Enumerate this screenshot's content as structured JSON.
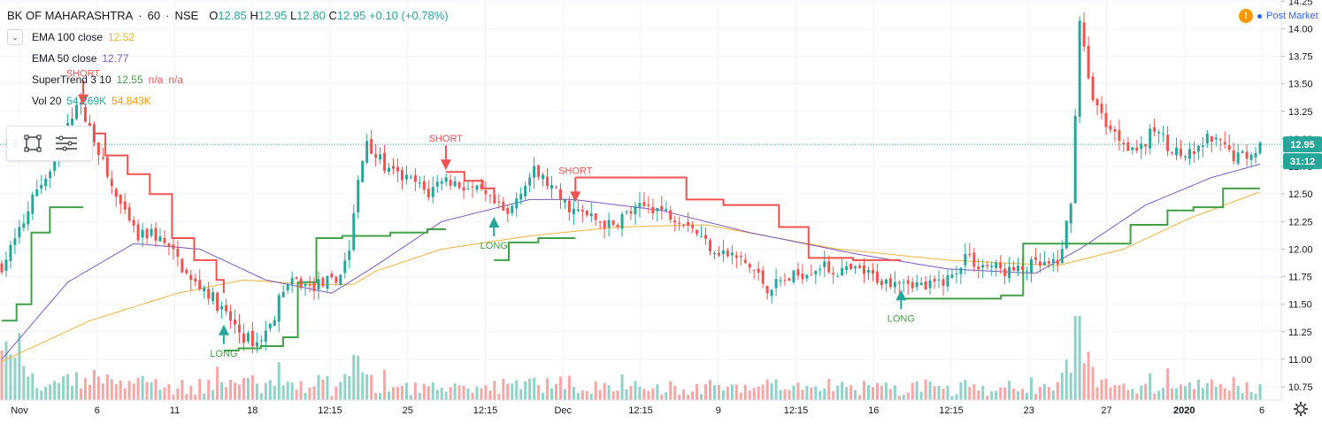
{
  "header": {
    "symbol": "BK OF MAHARASHTRA",
    "interval": "60",
    "exchange": "NSE",
    "open_label": "O",
    "open": "12.85",
    "high_label": "H",
    "high": "12.95",
    "low_label": "L",
    "low": "12.80",
    "close_label": "C",
    "close": "12.95",
    "change": "+0.10 (+0.78%)"
  },
  "post_market": {
    "badge": "!",
    "label": "Post Market"
  },
  "indicators": [
    {
      "label": "EMA 100 close",
      "value": "12.52",
      "color": "#f0b33a"
    },
    {
      "label": "EMA 50 close",
      "value": "12.77",
      "color": "#7e57c2"
    },
    {
      "label": "SuperTrend 3 10",
      "value": "12.55",
      "extra1": "n/a",
      "extra2": "n/a",
      "color": "#43a047",
      "color2": "#ef5350"
    },
    {
      "label": "Vol 20",
      "value": "54.269K",
      "value2": "54.843K",
      "color": "#26a69a",
      "color2": "#ff9800"
    }
  ],
  "colors": {
    "up": "#26a69a",
    "down": "#ef5350",
    "vol_up": "#8fd2c8",
    "vol_down": "#f4a7a5",
    "ema100": "#f0b33a",
    "ema50": "#7e57c2",
    "st_up": "#43a047",
    "st_down": "#ef5350",
    "price_badge": "#26a69a",
    "countdown_badge": "#26a69a",
    "grid": "#f0f3fa",
    "axis_text": "#131722"
  },
  "chart_data": {
    "type": "candlestick",
    "y_axis": {
      "range": [
        10.63,
        14.26
      ],
      "ticks": [
        "14.25",
        "14.00",
        "13.75",
        "13.50",
        "13.25",
        "13.00",
        "12.75",
        "12.50",
        "12.25",
        "12.00",
        "11.75",
        "11.50",
        "11.25",
        "11.00",
        "10.75"
      ]
    },
    "x_axis": {
      "ticks": [
        "Nov",
        "6",
        "11",
        "18",
        "12:15",
        "25",
        "12:15",
        "Dec",
        "12:15",
        "9",
        "12:15",
        "16",
        "12:15",
        "23",
        "27",
        "2020",
        "6"
      ]
    },
    "last_price": "12.95",
    "countdown": "31:12",
    "signals": [
      {
        "label": "SHORT"
      },
      {
        "label": "LONG"
      },
      {
        "label": "SHORT"
      },
      {
        "label": "LONG"
      },
      {
        "label": "SHORT"
      },
      {
        "label": "LONG"
      }
    ],
    "close_anchors": [
      [
        0,
        11.85
      ],
      [
        4,
        12.15
      ],
      [
        8,
        12.55
      ],
      [
        12,
        12.75
      ],
      [
        15,
        13.1
      ],
      [
        17,
        13.35
      ],
      [
        20,
        13.1
      ],
      [
        22,
        12.9
      ],
      [
        24,
        12.65
      ],
      [
        28,
        12.3
      ],
      [
        31,
        12.1
      ],
      [
        34,
        12.15
      ],
      [
        37,
        12.05
      ],
      [
        40,
        11.9
      ],
      [
        43,
        11.7
      ],
      [
        46,
        11.65
      ],
      [
        49,
        11.5
      ],
      [
        52,
        11.35
      ],
      [
        55,
        11.2
      ],
      [
        58,
        11.15
      ],
      [
        61,
        11.3
      ],
      [
        64,
        11.65
      ],
      [
        67,
        11.7
      ],
      [
        70,
        11.65
      ],
      [
        73,
        11.7
      ],
      [
        76,
        11.7
      ],
      [
        79,
        12.0
      ],
      [
        81,
        12.6
      ],
      [
        83,
        13.0
      ],
      [
        85,
        12.85
      ],
      [
        88,
        12.7
      ],
      [
        91,
        12.65
      ],
      [
        94,
        12.6
      ],
      [
        97,
        12.5
      ],
      [
        100,
        12.65
      ],
      [
        103,
        12.6
      ],
      [
        106,
        12.55
      ],
      [
        109,
        12.5
      ],
      [
        112,
        12.4
      ],
      [
        115,
        12.3
      ],
      [
        118,
        12.55
      ],
      [
        121,
        12.7
      ],
      [
        124,
        12.6
      ],
      [
        127,
        12.45
      ],
      [
        130,
        12.35
      ],
      [
        133,
        12.3
      ],
      [
        136,
        12.25
      ],
      [
        139,
        12.2
      ],
      [
        141,
        12.3
      ],
      [
        144,
        12.35
      ],
      [
        147,
        12.4
      ],
      [
        150,
        12.35
      ],
      [
        153,
        12.3
      ],
      [
        156,
        12.25
      ],
      [
        159,
        12.1
      ],
      [
        162,
        12.0
      ],
      [
        165,
        11.95
      ],
      [
        168,
        11.9
      ],
      [
        171,
        11.8
      ],
      [
        174,
        11.65
      ],
      [
        177,
        11.7
      ],
      [
        180,
        11.75
      ],
      [
        183,
        11.8
      ],
      [
        186,
        11.85
      ],
      [
        189,
        11.8
      ],
      [
        192,
        11.8
      ],
      [
        195,
        11.8
      ],
      [
        198,
        11.75
      ],
      [
        201,
        11.7
      ],
      [
        204,
        11.75
      ],
      [
        207,
        11.7
      ],
      [
        210,
        11.65
      ],
      [
        213,
        11.7
      ],
      [
        216,
        11.75
      ],
      [
        219,
        11.95
      ],
      [
        222,
        11.85
      ],
      [
        225,
        11.85
      ],
      [
        228,
        11.8
      ],
      [
        231,
        11.8
      ],
      [
        234,
        11.85
      ],
      [
        237,
        11.85
      ],
      [
        240,
        11.85
      ],
      [
        243,
        12.4
      ],
      [
        245,
        14.1
      ],
      [
        247,
        13.5
      ],
      [
        250,
        13.2
      ],
      [
        253,
        13.05
      ],
      [
        256,
        12.95
      ],
      [
        259,
        12.9
      ],
      [
        262,
        13.1
      ],
      [
        265,
        12.95
      ],
      [
        268,
        12.85
      ],
      [
        271,
        12.85
      ],
      [
        274,
        13.0
      ],
      [
        277,
        12.95
      ],
      [
        280,
        12.85
      ],
      [
        283,
        12.85
      ],
      [
        286,
        12.95
      ]
    ],
    "candle_count": 287,
    "ema100_anchors": [
      [
        0,
        10.98
      ],
      [
        20,
        11.35
      ],
      [
        40,
        11.6
      ],
      [
        55,
        11.72
      ],
      [
        70,
        11.68
      ],
      [
        80,
        11.68
      ],
      [
        85,
        11.8
      ],
      [
        100,
        12.0
      ],
      [
        120,
        12.12
      ],
      [
        140,
        12.2
      ],
      [
        160,
        12.22
      ],
      [
        190,
        12.0
      ],
      [
        215,
        11.9
      ],
      [
        240,
        11.85
      ],
      [
        255,
        12.0
      ],
      [
        270,
        12.28
      ],
      [
        286,
        12.52
      ]
    ],
    "ema50_anchors": [
      [
        0,
        11.0
      ],
      [
        15,
        11.7
      ],
      [
        30,
        12.05
      ],
      [
        45,
        12.0
      ],
      [
        60,
        11.72
      ],
      [
        75,
        11.6
      ],
      [
        85,
        11.85
      ],
      [
        100,
        12.25
      ],
      [
        120,
        12.45
      ],
      [
        130,
        12.45
      ],
      [
        150,
        12.35
      ],
      [
        170,
        12.15
      ],
      [
        195,
        11.95
      ],
      [
        215,
        11.82
      ],
      [
        235,
        11.78
      ],
      [
        245,
        12.0
      ],
      [
        260,
        12.4
      ],
      [
        275,
        12.65
      ],
      [
        286,
        12.77
      ]
    ],
    "supertrend": [
      {
        "trend": "up",
        "points": [
          [
            0,
            11.35
          ],
          [
            4,
            11.5
          ],
          [
            8,
            12.15
          ],
          [
            13,
            12.38
          ],
          [
            18,
            12.38
          ],
          [
            22,
            12.38
          ]
        ]
      },
      {
        "trend": "down",
        "points": [
          [
            22,
            13.05
          ],
          [
            28,
            12.85
          ],
          [
            34,
            12.68
          ],
          [
            40,
            12.5
          ],
          [
            46,
            12.1
          ],
          [
            52,
            11.9
          ],
          [
            58,
            11.72
          ],
          [
            60,
            11.6
          ]
        ]
      },
      {
        "trend": "up",
        "points": [
          [
            60,
            11.08
          ],
          [
            64,
            11.1
          ],
          [
            70,
            11.12
          ],
          [
            76,
            11.2
          ],
          [
            80,
            11.7
          ],
          [
            85,
            12.1
          ],
          [
            92,
            12.12
          ],
          [
            105,
            12.15
          ],
          [
            115,
            12.18
          ],
          [
            120,
            12.18
          ]
        ]
      },
      {
        "trend": "down",
        "points": [
          [
            120,
            12.7
          ],
          [
            125,
            12.62
          ],
          [
            130,
            12.55
          ],
          [
            133,
            12.5
          ]
        ]
      },
      {
        "trend": "up",
        "points": [
          [
            133,
            11.9
          ],
          [
            137,
            12.06
          ],
          [
            145,
            12.1
          ],
          [
            150,
            12.1
          ],
          [
            155,
            12.1
          ]
        ]
      },
      {
        "trend": "down",
        "points": [
          [
            155,
            12.65
          ],
          [
            165,
            12.65
          ],
          [
            180,
            12.65
          ],
          [
            185,
            12.45
          ],
          [
            195,
            12.4
          ],
          [
            210,
            12.2
          ],
          [
            218,
            11.92
          ],
          [
            230,
            11.9
          ],
          [
            240,
            11.9
          ],
          [
            243,
            11.9
          ]
        ]
      },
      {
        "trend": "up",
        "points": [
          [
            243,
            11.55
          ],
          [
            246,
            11.55
          ],
          [
            265,
            11.55
          ],
          [
            270,
            11.58
          ],
          [
            273,
            11.58
          ],
          [
            276,
            12.05
          ],
          [
            290,
            12.05
          ],
          [
            300,
            12.05
          ],
          [
            305,
            12.22
          ],
          [
            315,
            12.35
          ],
          [
            322,
            12.38
          ],
          [
            330,
            12.55
          ],
          [
            337,
            12.55
          ],
          [
            340,
            12.55
          ]
        ]
      }
    ]
  }
}
